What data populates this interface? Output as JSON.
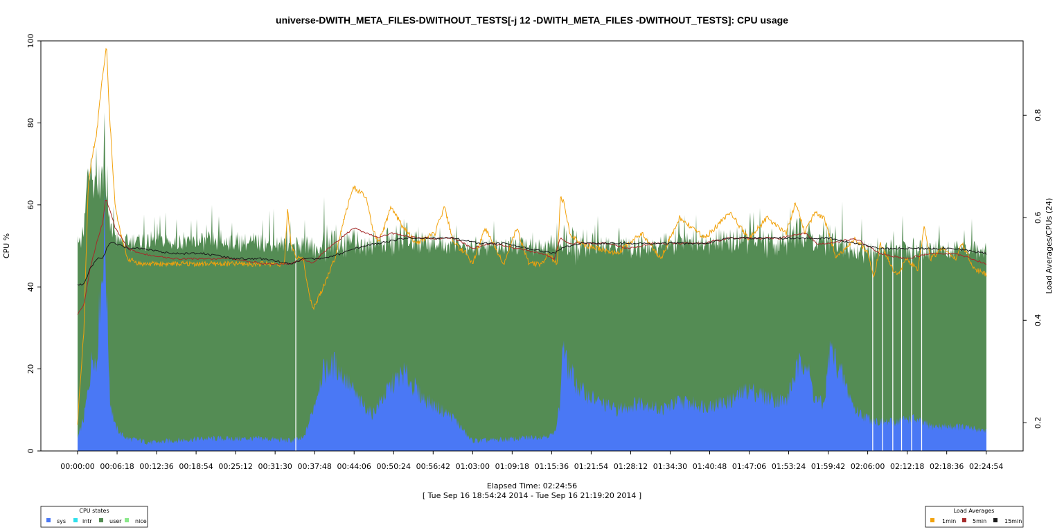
{
  "chart_data": {
    "type": "area",
    "title": "universe-DWITH_META_FILES-DWITHOUT_TESTS[-j 12 -DWITH_META_FILES -DWITHOUT_TESTS]: CPU usage",
    "ylabel_left": "CPU %",
    "ylabel_right": "Load Averages/CPUs (24)",
    "xlabel": "Elapsed Time: 02:24:56",
    "xlabel_sub": "[ Tue Sep 16 18:54:24 2014 - Tue Sep 16 21:19:20 2014 ]",
    "ylim_left": [
      0,
      100
    ],
    "ylim_right": [
      0.145,
      0.945
    ],
    "x_range_minutes": [
      0,
      144.93
    ],
    "y_ticks_left": [
      "0",
      "20",
      "40",
      "60",
      "80",
      "100"
    ],
    "y_ticks_right": [
      "0.2",
      "0.4",
      "0.6",
      "0.8"
    ],
    "x_ticks": [
      "00:00:00",
      "00:06:18",
      "00:12:36",
      "00:18:54",
      "00:25:12",
      "00:31:30",
      "00:37:48",
      "00:44:06",
      "00:50:24",
      "00:56:42",
      "01:03:00",
      "01:09:18",
      "01:15:36",
      "01:21:54",
      "01:28:12",
      "01:34:30",
      "01:40:48",
      "01:47:06",
      "01:53:24",
      "01:59:42",
      "02:06:00",
      "02:12:18",
      "02:18:36",
      "02:24:54"
    ],
    "x_tick_minutes": [
      0,
      6.3,
      12.6,
      18.9,
      25.2,
      31.5,
      37.8,
      44.1,
      50.4,
      56.7,
      63.0,
      69.3,
      75.6,
      81.9,
      88.2,
      94.5,
      100.8,
      107.1,
      113.4,
      119.7,
      126.0,
      132.3,
      138.6,
      144.9
    ],
    "series": [
      {
        "name": "sys",
        "color": "#4a78f5",
        "x_minutes": [
          0,
          1,
          1.7,
          2.5,
          3,
          3.5,
          4,
          4.3,
          4.6,
          5.2,
          6,
          7,
          8,
          10,
          12,
          15,
          20,
          25,
          30,
          34,
          36,
          36.5,
          37.5,
          38.2,
          39,
          41,
          43,
          45,
          47,
          50,
          52,
          55,
          58,
          60,
          61.5,
          62.5,
          63,
          65,
          70,
          74,
          76,
          77,
          77.3,
          78,
          80,
          83,
          86,
          90,
          93,
          96,
          100,
          104,
          107,
          110,
          113,
          114.5,
          116,
          117.5,
          119,
          120,
          122,
          124,
          126,
          128,
          130,
          133,
          136,
          140,
          144.9
        ],
        "values": [
          3,
          8,
          15,
          25,
          20,
          36,
          44,
          56,
          40,
          12,
          6,
          4,
          3,
          2.5,
          2,
          2.5,
          3,
          3,
          3,
          2.5,
          3,
          5,
          10,
          14,
          19,
          21,
          17,
          12,
          9,
          16,
          19,
          13,
          10,
          8,
          5,
          3,
          2.5,
          2.5,
          3,
          3.5,
          4,
          12,
          27,
          21,
          15,
          12,
          10,
          12,
          10,
          12,
          11,
          12,
          15,
          13,
          12,
          19,
          23,
          13,
          11,
          25,
          18,
          10,
          8,
          7,
          7,
          8,
          6,
          6,
          5
        ]
      },
      {
        "name": "intr",
        "color": "#2ee0ec",
        "x_minutes": [
          0,
          144.9
        ],
        "values": [
          0,
          0
        ]
      },
      {
        "name": "user",
        "color": "#548c54",
        "x_minutes": [
          0,
          1,
          1.7,
          2.5,
          3,
          3.5,
          4,
          4.3,
          4.6,
          5.2,
          6,
          7,
          8,
          10,
          12,
          15,
          20,
          25,
          30,
          34,
          36,
          36.5,
          37.5,
          38.2,
          39,
          41,
          43,
          45,
          47,
          50,
          52,
          55,
          58,
          60,
          61.5,
          62.5,
          63,
          65,
          70,
          74,
          76,
          77,
          77.3,
          78,
          80,
          83,
          86,
          90,
          93,
          96,
          100,
          104,
          107,
          110,
          113,
          114.5,
          116,
          117.5,
          119,
          120,
          122,
          124,
          126,
          128,
          130,
          133,
          136,
          140,
          144.9
        ],
        "values": [
          48,
          45,
          55,
          42,
          48,
          30,
          26,
          18,
          25,
          43,
          46,
          47,
          48,
          48.5,
          49,
          48.5,
          48,
          48,
          47.5,
          47.5,
          47,
          45,
          40,
          36,
          32,
          30,
          34,
          38,
          42,
          35,
          33,
          38,
          40,
          42,
          45,
          47,
          47.5,
          47.5,
          47,
          46.5,
          46,
          38,
          22,
          29,
          35,
          38,
          40,
          38,
          40,
          39,
          40,
          39,
          37,
          38,
          39,
          34,
          31,
          38,
          40,
          26,
          32,
          39,
          41,
          42,
          42,
          41,
          43,
          43,
          44
        ]
      },
      {
        "name": "nice",
        "color": "#8ae88a",
        "x_minutes": [
          0,
          144.9
        ],
        "values": [
          0,
          0
        ]
      },
      {
        "name": "1min",
        "color": "#f2a20c",
        "x_minutes": [
          0,
          1,
          1.7,
          2.3,
          3,
          3.5,
          4,
          4.3,
          4.6,
          5,
          6,
          7,
          8,
          10,
          15,
          20,
          25,
          30,
          33,
          33.5,
          34,
          35,
          36,
          36.5,
          37.5,
          39,
          41,
          42.5,
          44,
          46,
          47,
          48,
          50,
          52,
          54,
          57,
          58.5,
          60,
          62,
          63,
          65,
          68,
          70,
          72,
          74,
          75,
          76.5,
          77,
          77.5,
          78.5,
          80,
          83,
          86,
          90,
          93,
          96,
          100,
          104,
          107,
          110,
          113,
          114.5,
          116,
          117.5,
          119,
          121,
          124,
          126,
          127,
          128,
          130,
          131,
          132,
          134,
          135,
          136,
          138,
          140,
          141,
          143,
          144.9
        ],
        "values": [
          0.2,
          0.38,
          0.66,
          0.72,
          0.76,
          0.82,
          0.88,
          0.9,
          0.94,
          0.82,
          0.62,
          0.56,
          0.52,
          0.51,
          0.51,
          0.51,
          0.51,
          0.51,
          0.51,
          0.62,
          0.55,
          0.52,
          0.52,
          0.48,
          0.42,
          0.46,
          0.52,
          0.6,
          0.66,
          0.64,
          0.58,
          0.55,
          0.62,
          0.58,
          0.55,
          0.57,
          0.62,
          0.55,
          0.53,
          0.51,
          0.58,
          0.51,
          0.58,
          0.51,
          0.51,
          0.53,
          0.51,
          0.64,
          0.63,
          0.57,
          0.55,
          0.54,
          0.53,
          0.57,
          0.52,
          0.6,
          0.56,
          0.61,
          0.56,
          0.6,
          0.57,
          0.63,
          0.57,
          0.61,
          0.6,
          0.52,
          0.56,
          0.53,
          0.48,
          0.55,
          0.5,
          0.49,
          0.52,
          0.5,
          0.58,
          0.52,
          0.54,
          0.52,
          0.55,
          0.5,
          0.49
        ]
      },
      {
        "name": "5min",
        "color": "#a52a2a",
        "x_minutes": [
          0,
          1,
          2,
          3,
          4,
          4.5,
          5,
          6,
          8,
          10,
          15,
          20,
          25,
          30,
          34,
          36,
          37.5,
          39,
          42,
          44,
          46,
          48,
          50,
          54,
          58,
          60,
          63,
          66,
          70,
          74,
          76,
          77,
          78,
          80,
          84,
          88,
          92,
          96,
          100,
          104,
          108,
          112,
          116,
          118,
          120,
          124,
          128,
          132,
          136,
          140,
          144.9
        ],
        "values": [
          0.41,
          0.43,
          0.5,
          0.55,
          0.59,
          0.64,
          0.62,
          0.58,
          0.54,
          0.53,
          0.52,
          0.52,
          0.52,
          0.51,
          0.51,
          0.52,
          0.51,
          0.53,
          0.56,
          0.58,
          0.57,
          0.56,
          0.57,
          0.56,
          0.56,
          0.56,
          0.54,
          0.55,
          0.54,
          0.53,
          0.52,
          0.56,
          0.55,
          0.55,
          0.55,
          0.54,
          0.55,
          0.55,
          0.55,
          0.56,
          0.56,
          0.56,
          0.57,
          0.55,
          0.55,
          0.56,
          0.53,
          0.52,
          0.53,
          0.53,
          0.51
        ]
      },
      {
        "name": "15min",
        "color": "#1a1a1a",
        "x_minutes": [
          0,
          1,
          2,
          3,
          4,
          5,
          6,
          8,
          10,
          15,
          20,
          25,
          30,
          34,
          36,
          37.5,
          39,
          42,
          44,
          48,
          52,
          56,
          60,
          64,
          68,
          72,
          76,
          77,
          80,
          84,
          88,
          92,
          96,
          100,
          104,
          108,
          112,
          116,
          120,
          124,
          128,
          132,
          136,
          140,
          144.9
        ],
        "values": [
          0.47,
          0.47,
          0.5,
          0.52,
          0.52,
          0.55,
          0.55,
          0.54,
          0.54,
          0.53,
          0.53,
          0.52,
          0.52,
          0.51,
          0.52,
          0.52,
          0.52,
          0.53,
          0.54,
          0.55,
          0.56,
          0.56,
          0.56,
          0.55,
          0.55,
          0.54,
          0.53,
          0.54,
          0.55,
          0.55,
          0.55,
          0.55,
          0.55,
          0.55,
          0.56,
          0.56,
          0.56,
          0.56,
          0.56,
          0.55,
          0.54,
          0.54,
          0.54,
          0.54,
          0.53
        ]
      }
    ],
    "gaps_minutes": [
      34.8,
      126.8,
      128.4,
      130,
      131.4,
      133,
      134.6
    ],
    "legends": [
      {
        "title": "CPU states",
        "position": "bottom-left",
        "items": [
          "sys",
          "intr",
          "user",
          "nice"
        ]
      },
      {
        "title": "Load Averages",
        "position": "bottom-right",
        "items": [
          "1min",
          "5min",
          "15min"
        ]
      }
    ]
  }
}
